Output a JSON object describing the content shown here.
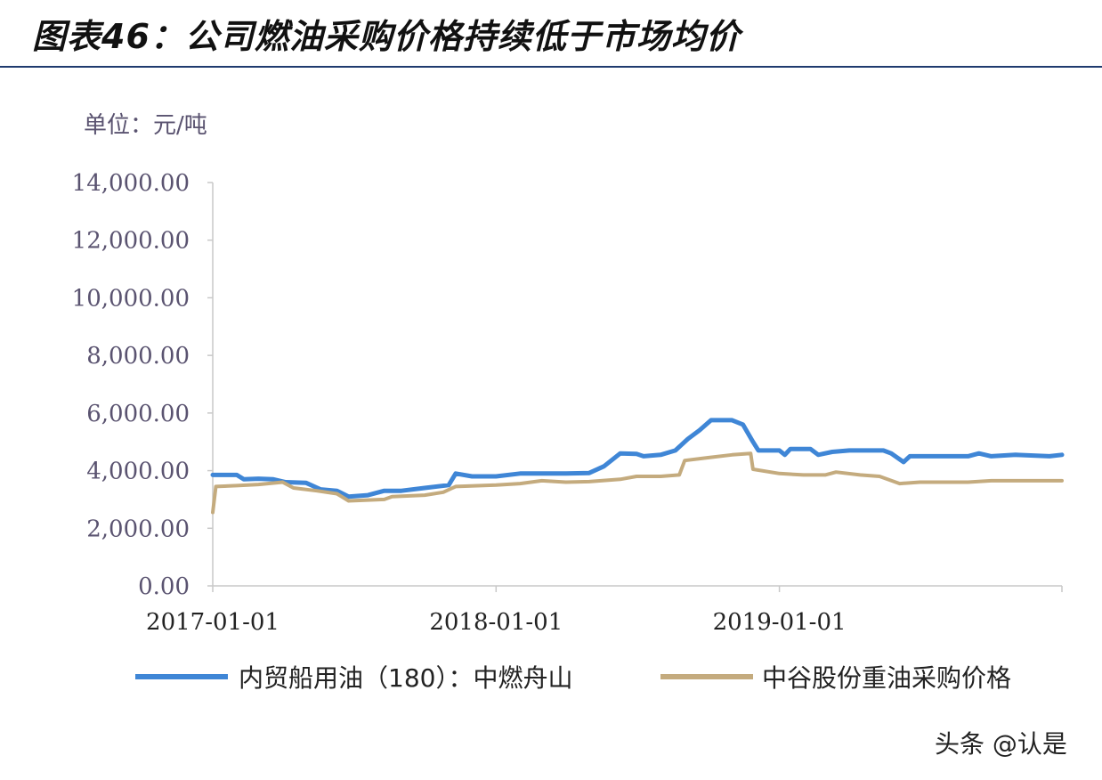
{
  "header": {
    "title": "图表46：公司燃油采购价格持续低于市场均价"
  },
  "chart_data": {
    "type": "line",
    "unit_label": "单位：元/吨",
    "ylim": [
      0,
      14000
    ],
    "y_ticks": [
      0,
      2000,
      4000,
      6000,
      8000,
      10000,
      12000,
      14000
    ],
    "y_tick_labels": [
      "0.00",
      "2,000.00",
      "4,000.00",
      "6,000.00",
      "8,000.00",
      "10,000.00",
      "12,000.00",
      "14,000.00"
    ],
    "x_range": [
      "2017-01-01",
      "2019-12-31"
    ],
    "x_ticks": [
      "2017-01-01",
      "2018-01-01",
      "2019-01-01"
    ],
    "grid": false,
    "legend_position": "bottom",
    "series": [
      {
        "name": "内贸船用油（180）：中燃舟山",
        "color": "#3f86d6",
        "points": [
          [
            "2017-01-01",
            3850
          ],
          [
            "2017-02-01",
            3850
          ],
          [
            "2017-02-10",
            3700
          ],
          [
            "2017-03-01",
            3720
          ],
          [
            "2017-03-20",
            3700
          ],
          [
            "2017-04-05",
            3600
          ],
          [
            "2017-05-01",
            3580
          ],
          [
            "2017-05-20",
            3350
          ],
          [
            "2017-06-10",
            3300
          ],
          [
            "2017-06-25",
            3100
          ],
          [
            "2017-07-20",
            3150
          ],
          [
            "2017-08-10",
            3300
          ],
          [
            "2017-09-01",
            3300
          ],
          [
            "2017-10-01",
            3400
          ],
          [
            "2017-11-01",
            3500
          ],
          [
            "2017-11-10",
            3900
          ],
          [
            "2017-12-01",
            3800
          ],
          [
            "2018-01-01",
            3800
          ],
          [
            "2018-02-01",
            3900
          ],
          [
            "2018-03-01",
            3900
          ],
          [
            "2018-04-01",
            3900
          ],
          [
            "2018-05-01",
            3920
          ],
          [
            "2018-05-20",
            4150
          ],
          [
            "2018-06-10",
            4600
          ],
          [
            "2018-07-01",
            4580
          ],
          [
            "2018-07-10",
            4500
          ],
          [
            "2018-08-01",
            4550
          ],
          [
            "2018-08-20",
            4700
          ],
          [
            "2018-09-05",
            5100
          ],
          [
            "2018-09-20",
            5400
          ],
          [
            "2018-10-05",
            5750
          ],
          [
            "2018-11-01",
            5750
          ],
          [
            "2018-11-15",
            5600
          ],
          [
            "2018-11-28",
            5000
          ],
          [
            "2018-12-05",
            4700
          ],
          [
            "2019-01-01",
            4700
          ],
          [
            "2019-01-08",
            4550
          ],
          [
            "2019-01-15",
            4750
          ],
          [
            "2019-02-10",
            4750
          ],
          [
            "2019-02-20",
            4550
          ],
          [
            "2019-03-10",
            4650
          ],
          [
            "2019-04-01",
            4700
          ],
          [
            "2019-05-15",
            4700
          ],
          [
            "2019-05-25",
            4600
          ],
          [
            "2019-06-10",
            4300
          ],
          [
            "2019-06-18",
            4500
          ],
          [
            "2019-09-01",
            4500
          ],
          [
            "2019-09-15",
            4600
          ],
          [
            "2019-10-01",
            4500
          ],
          [
            "2019-11-01",
            4550
          ],
          [
            "2019-12-15",
            4500
          ],
          [
            "2019-12-31",
            4550
          ]
        ]
      },
      {
        "name": "中谷股份重油采购价格",
        "color": "#c4ab7e",
        "points": [
          [
            "2017-01-01",
            2550
          ],
          [
            "2017-01-05",
            3450
          ],
          [
            "2017-02-01",
            3480
          ],
          [
            "2017-03-01",
            3520
          ],
          [
            "2017-04-01",
            3600
          ],
          [
            "2017-04-15",
            3400
          ],
          [
            "2017-05-15",
            3300
          ],
          [
            "2017-06-10",
            3200
          ],
          [
            "2017-06-25",
            2950
          ],
          [
            "2017-08-10",
            3000
          ],
          [
            "2017-08-20",
            3100
          ],
          [
            "2017-10-01",
            3150
          ],
          [
            "2017-10-25",
            3250
          ],
          [
            "2017-11-10",
            3450
          ],
          [
            "2018-01-01",
            3500
          ],
          [
            "2018-02-01",
            3550
          ],
          [
            "2018-03-01",
            3650
          ],
          [
            "2018-04-01",
            3600
          ],
          [
            "2018-05-01",
            3620
          ],
          [
            "2018-06-10",
            3700
          ],
          [
            "2018-07-01",
            3800
          ],
          [
            "2018-08-01",
            3800
          ],
          [
            "2018-08-25",
            3850
          ],
          [
            "2018-09-01",
            4350
          ],
          [
            "2018-10-01",
            4450
          ],
          [
            "2018-11-01",
            4550
          ],
          [
            "2018-11-25",
            4600
          ],
          [
            "2018-11-28",
            4050
          ],
          [
            "2019-01-01",
            3900
          ],
          [
            "2019-02-01",
            3850
          ],
          [
            "2019-03-01",
            3850
          ],
          [
            "2019-03-15",
            3950
          ],
          [
            "2019-04-15",
            3850
          ],
          [
            "2019-05-10",
            3800
          ],
          [
            "2019-06-05",
            3550
          ],
          [
            "2019-07-01",
            3600
          ],
          [
            "2019-09-01",
            3600
          ],
          [
            "2019-10-01",
            3650
          ],
          [
            "2019-12-31",
            3650
          ]
        ]
      }
    ]
  },
  "watermark": "头条 @认是"
}
